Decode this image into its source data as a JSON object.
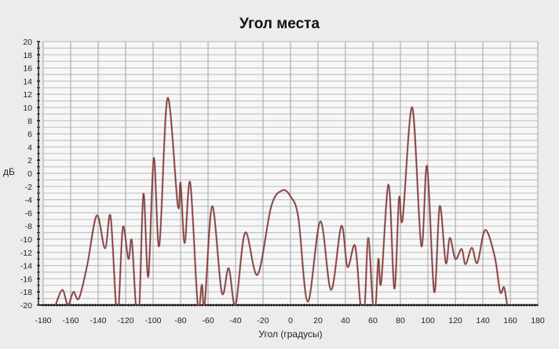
{
  "chart_data": {
    "type": "line",
    "title": "Угол места",
    "xlabel": "Угол (градусы)",
    "ylabel": "дБ",
    "xlim": [
      -180,
      180
    ],
    "ylim": [
      -20,
      20
    ],
    "xticks": [
      -180,
      -160,
      -140,
      -120,
      -100,
      -80,
      -60,
      -40,
      -20,
      0,
      20,
      40,
      60,
      80,
      100,
      120,
      140,
      160,
      180
    ],
    "yticks": [
      -20,
      -18,
      -16,
      -14,
      -12,
      -10,
      -8,
      -6,
      -4,
      -2,
      0,
      2,
      4,
      6,
      8,
      10,
      12,
      14,
      16,
      18,
      20
    ],
    "grid": true,
    "line_color": "#8a3a3a",
    "series": [
      {
        "x": [
          -171,
          -166,
          -162,
          -158,
          -154,
          -148,
          -141,
          -135,
          -131,
          -127,
          -125,
          -122,
          -118,
          -115.5,
          -112.5,
          -110,
          -107,
          -103.5,
          -99.5,
          -95.5,
          -89.5,
          -82,
          -80,
          -77,
          -73,
          -67.5,
          -64.5,
          -62.5,
          -57,
          -50,
          -45,
          -40,
          -33,
          -24,
          -14,
          -6,
          0,
          5.7,
          12.6,
          21.7,
          29.5,
          37,
          41.5,
          47,
          51,
          54,
          56.6,
          60,
          62,
          64,
          66,
          71.4,
          75.6,
          79,
          81.6,
          88.6,
          95.2,
          99.4,
          104.6,
          108.6,
          113,
          116,
          120,
          124.6,
          127.4,
          132,
          136,
          141.7,
          148.6,
          152.6,
          155.4,
          157.7
        ],
        "y": [
          -20,
          -17.7,
          -20,
          -18,
          -19,
          -14,
          -6.4,
          -11.4,
          -6.5,
          -20,
          -20,
          -8.2,
          -13,
          -10.2,
          -20,
          -20,
          -3.1,
          -15.7,
          2.3,
          -11,
          11.4,
          -4.9,
          -1.5,
          -10.6,
          -1.4,
          -20,
          -16.9,
          -20,
          -5,
          -18.1,
          -14.4,
          -20,
          -9,
          -15.4,
          -5,
          -2.6,
          -3.5,
          -6.7,
          -19.5,
          -7.3,
          -17.7,
          -8,
          -14.2,
          -11,
          -20,
          -20,
          -9.8,
          -20,
          -20,
          -13,
          -16.6,
          -1.7,
          -17.5,
          -3.8,
          -7,
          10,
          -11,
          1.1,
          -18,
          -5,
          -13.6,
          -9.8,
          -13,
          -11.5,
          -13.8,
          -11.3,
          -13.6,
          -8.6,
          -12.6,
          -18,
          -17.3,
          -20
        ]
      }
    ]
  }
}
